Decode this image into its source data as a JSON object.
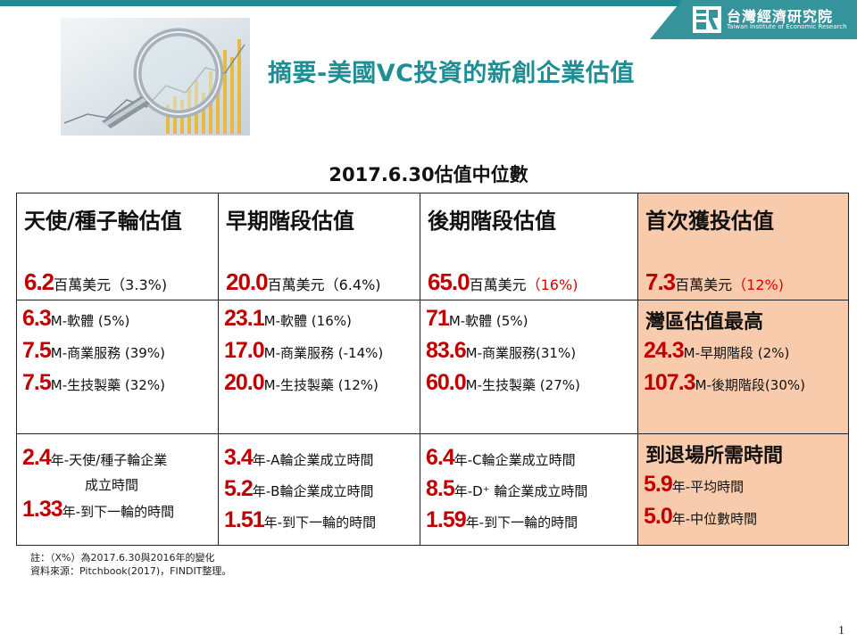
{
  "header": {
    "org_name_zh": "台灣經濟研究院",
    "org_name_en": "Taiwan Institute of Economic Research",
    "title": "摘要-美國VC投資的新創企業估值"
  },
  "table": {
    "subtitle": "2017.6.30估值中位數",
    "row1": [
      {
        "head": "天使/種子輪估值",
        "value": "6.2",
        "unit": "百萬美元",
        "pct": "（3.3%)"
      },
      {
        "head": "早期階段估值",
        "value": "20.0",
        "unit": "百萬美元",
        "pct": "（6.4%)"
      },
      {
        "head": "後期階段估值",
        "value": "65.0",
        "unit": "百萬美元",
        "pct": "（16%)"
      },
      {
        "head": "首次獲投估值",
        "value": "7.3",
        "unit": "百萬美元",
        "pct": "（12%)"
      }
    ],
    "row2": [
      {
        "lines": [
          {
            "value": "6.3",
            "text": "M-軟體 (5%)"
          },
          {
            "value": "7.5",
            "text": "M-商業服務 (39%)"
          },
          {
            "value": "7.5",
            "text": "M-生技製藥 (32%)"
          }
        ]
      },
      {
        "lines": [
          {
            "value": "23.1",
            "text": "M-軟體 (16%)"
          },
          {
            "value": "17.0",
            "text": "M-商業服務 (-14%)"
          },
          {
            "value": "20.0",
            "text": "M-生技製藥 (12%)"
          }
        ]
      },
      {
        "lines": [
          {
            "value": "71",
            "text": "M-軟體 (5%)"
          },
          {
            "value": "83.6",
            "text": "M-商業服務(31%)"
          },
          {
            "value": "60.0",
            "text": "M-生技製藥 (27%)"
          }
        ]
      },
      {
        "head": "灣區估值最高",
        "lines": [
          {
            "value": "24.3",
            "text": "M-早期階段 (2%)"
          },
          {
            "value": "107.3",
            "text": "M-後期階段(30%)"
          }
        ]
      }
    ],
    "row3": [
      {
        "lines": [
          {
            "value": "2.4",
            "text": "年-天使/種子輪企業"
          },
          {
            "value": "",
            "text": "成立時間"
          },
          {
            "value": "1.33",
            "text": "年-到下一輪的時間"
          }
        ]
      },
      {
        "lines": [
          {
            "value": "3.4",
            "text": "年-A輪企業成立時間"
          },
          {
            "value": "5.2",
            "text": "年-B輪企業成立時間"
          },
          {
            "value": "1.51",
            "text": "年-到下一輪的時間"
          }
        ]
      },
      {
        "lines": [
          {
            "value": "6.4",
            "text": "年-C輪企業成立時間"
          },
          {
            "value": "8.5",
            "text": "年-D⁺ 輪企業成立時間"
          },
          {
            "value": "1.59",
            "text": "年-到下一輪的時間"
          }
        ]
      },
      {
        "head": "到退場所需時間",
        "lines": [
          {
            "value": "5.9",
            "text": "年-平均時間"
          },
          {
            "value": "5.0",
            "text": "年-中位數時間"
          }
        ]
      }
    ]
  },
  "notes": {
    "note": "註：（X%）為2017.6.30與2016年的變化",
    "source": "資料來源：Pitchbook(2017)，FINDIT整理。"
  },
  "page_number": "1"
}
